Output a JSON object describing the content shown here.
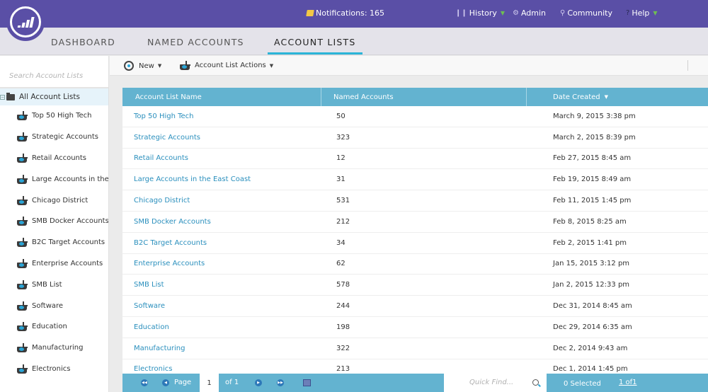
{
  "topbar": {
    "notifications": "Notifications: 165",
    "history": "History",
    "admin": "Admin",
    "community": "Community",
    "help": "Help"
  },
  "nav": {
    "tabs": [
      {
        "label": "DASHBOARD"
      },
      {
        "label": "NAMED ACCOUNTS"
      },
      {
        "label": "ACCOUNT LISTS"
      }
    ],
    "active": "ACCOUNT LISTS"
  },
  "sidebar": {
    "search_placeholder": "Search Account Lists",
    "root": "All Account Lists",
    "items": [
      {
        "label": "Top 50 High Tech"
      },
      {
        "label": "Strategic Accounts"
      },
      {
        "label": "Retail Accounts"
      },
      {
        "label": "Large Accounts in the"
      },
      {
        "label": "Chicago District"
      },
      {
        "label": "SMB Docker Accounts"
      },
      {
        "label": "B2C Target Accounts"
      },
      {
        "label": "Enterprise Accounts"
      },
      {
        "label": "SMB List"
      },
      {
        "label": "Software"
      },
      {
        "label": "Education"
      },
      {
        "label": "Manufacturing"
      },
      {
        "label": "Electronics"
      }
    ]
  },
  "toolbar": {
    "new_label": "New",
    "actions_label": "Account List Actions"
  },
  "grid": {
    "columns": [
      "Account List Name",
      "Named Accounts",
      "Date Created"
    ],
    "sort_column": "Date Created",
    "rows": [
      {
        "name": "Top 50 High Tech",
        "count": "50",
        "date": "March 9, 2015 3:38 pm"
      },
      {
        "name": "Strategic Accounts",
        "count": "323",
        "date": "March 2, 2015 8:39 pm"
      },
      {
        "name": "Retail Accounts",
        "count": "12",
        "date": "Feb 27, 2015 8:45 am"
      },
      {
        "name": "Large Accounts in the East Coast",
        "count": "31",
        "date": "Feb 19, 2015 8:49 am"
      },
      {
        "name": "Chicago District",
        "count": "531",
        "date": "Feb 11, 2015 1:45 pm"
      },
      {
        "name": "SMB Docker Accounts",
        "count": "212",
        "date": "Feb 8, 2015 8:25 am"
      },
      {
        "name": "B2C Target Accounts",
        "count": "34",
        "date": "Feb 2, 2015 1:41 pm"
      },
      {
        "name": "Enterprise Accounts",
        "count": "62",
        "date": "Jan 15, 2015 3:12 pm"
      },
      {
        "name": "SMB List",
        "count": "578",
        "date": "Jan 2, 2015 12:33 pm"
      },
      {
        "name": "Software",
        "count": "244",
        "date": "Dec 31, 2014 8:45 am"
      },
      {
        "name": "Education",
        "count": "198",
        "date": "Dec 29, 2014 6:35 am"
      },
      {
        "name": "Manufacturing",
        "count": "322",
        "date": "Dec 2, 2014 9:43 am"
      },
      {
        "name": "Electronics",
        "count": "213",
        "date": "Dec 1, 2014 1:45 pm"
      }
    ]
  },
  "pager": {
    "page_label": "Page",
    "page_value": "1",
    "of_label": "of 1",
    "quick_find_placeholder": "Quick Find...",
    "selected": "0 Selected",
    "page_summary": "1 of1"
  },
  "colors": {
    "brand_purple": "#5a4fa6",
    "header_blue": "#63b3d0",
    "active_tab": "#2bb5d8",
    "link": "#2a8fbd"
  }
}
